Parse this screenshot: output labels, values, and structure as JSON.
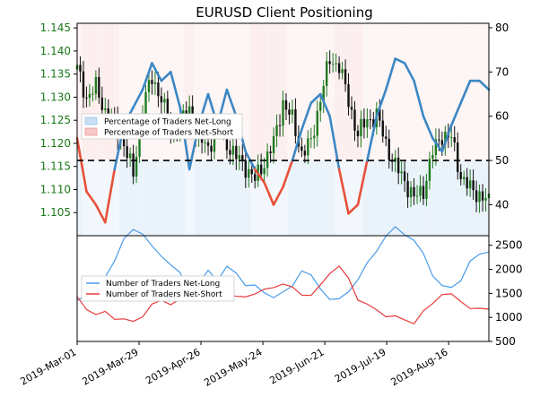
{
  "chart_data": [
    {
      "type": "line",
      "title": "EURUSD Client Positioning",
      "x": [
        "2019-Mar-01",
        "2019-Mar-29",
        "2019-Apr-26",
        "2019-May-24",
        "2019-Jun-21",
        "2019-Jul-19",
        "2019-Aug-16"
      ],
      "price_axis": {
        "ticks": [
          "1.105",
          "1.110",
          "1.115",
          "1.120",
          "1.125",
          "1.130",
          "1.135",
          "1.140",
          "1.145"
        ],
        "ylim": [
          1.1,
          1.146
        ]
      },
      "pct_axis": {
        "ticks": [
          "40",
          "50",
          "60",
          "70",
          "80"
        ],
        "ylim": [
          33,
          81
        ]
      },
      "reference_line": 50,
      "legend": [
        "Percentage of Traders Net-Long",
        "Percentage of Traders Net-Short"
      ],
      "long_pct_weekly": [
        55,
        43,
        40,
        36,
        48,
        58,
        62,
        66,
        72,
        68,
        70,
        62,
        48,
        58,
        65,
        58,
        66,
        60,
        52,
        48,
        45,
        40,
        44,
        50,
        57,
        63,
        65,
        60,
        48,
        38,
        40,
        50,
        60,
        66,
        73,
        72,
        68,
        60,
        55,
        52,
        58,
        63,
        68,
        68,
        66
      ],
      "price_close_weekly": [
        1.136,
        1.13,
        1.132,
        1.127,
        1.124,
        1.12,
        1.113,
        1.128,
        1.134,
        1.13,
        1.122,
        1.125,
        1.127,
        1.121,
        1.119,
        1.124,
        1.12,
        1.117,
        1.115,
        1.112,
        1.116,
        1.12,
        1.129,
        1.125,
        1.118,
        1.12,
        1.13,
        1.138,
        1.137,
        1.129,
        1.122,
        1.125,
        1.126,
        1.12,
        1.115,
        1.112,
        1.108,
        1.11,
        1.118,
        1.122,
        1.121,
        1.113,
        1.11,
        1.109,
        1.107
      ]
    },
    {
      "type": "line",
      "y_ticks": [
        "500",
        "1000",
        "1500",
        "2000",
        "2500"
      ],
      "ylim": [
        500,
        2700
      ],
      "legend": [
        "Number of Traders Net-Long",
        "Number of Traders Net-Short"
      ],
      "series": [
        {
          "name": "Number of Traders Net-Long",
          "color": "#4a9be8",
          "values": [
            1350,
            1500,
            1700,
            1850,
            2200,
            2600,
            2850,
            2750,
            2450,
            2300,
            2100,
            1900,
            1500,
            1700,
            1950,
            1800,
            2050,
            1900,
            1700,
            1650,
            1500,
            1450,
            1500,
            1650,
            2000,
            1850,
            1600,
            1400,
            1350,
            1550,
            1800,
            2100,
            2400,
            2700,
            2850,
            2750,
            2600,
            2300,
            1900,
            1650,
            1600,
            1800,
            2150,
            2300,
            2400
          ]
        },
        {
          "name": "Number of Traders Net-Short",
          "color": "#e83a3a",
          "values": [
            1400,
            1200,
            1050,
            1100,
            1000,
            950,
            900,
            1050,
            1250,
            1350,
            1300,
            1350,
            1550,
            1500,
            1450,
            1550,
            1500,
            1400,
            1450,
            1500,
            1550,
            1650,
            1700,
            1600,
            1500,
            1450,
            1650,
            1950,
            2050,
            1800,
            1400,
            1250,
            1150,
            1050,
            1000,
            950,
            900,
            1100,
            1300,
            1500,
            1450,
            1350,
            1200,
            1150,
            1200
          ]
        }
      ]
    }
  ]
}
